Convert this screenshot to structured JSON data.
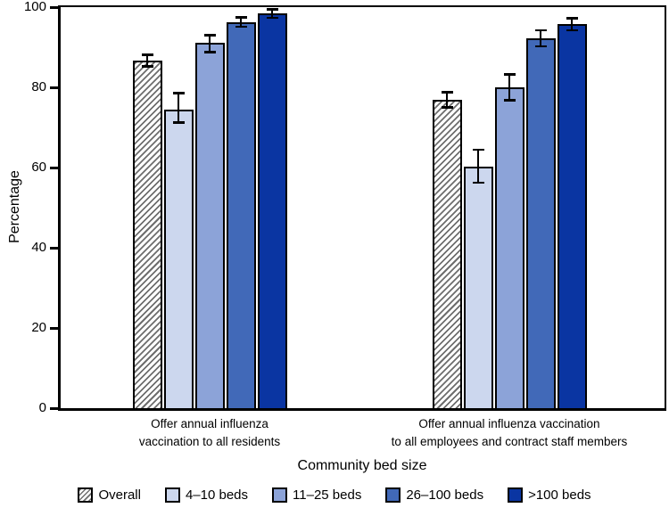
{
  "chart_data": {
    "type": "bar",
    "title": "",
    "ylabel": "Percentage",
    "xlabel": "Community bed size",
    "ylim": [
      0,
      100
    ],
    "yticks": [
      0,
      20,
      40,
      60,
      80,
      100
    ],
    "grid": false,
    "legend_position": "bottom",
    "error_bars": true,
    "bar_border_color": "#000000",
    "hatch_color": "#6e6e6e",
    "categories": [
      {
        "lines": [
          "Offer annual influenza",
          "vaccination to all residents"
        ]
      },
      {
        "lines": [
          "Offer annual influenza vaccination",
          "to all employees and contract staff members"
        ]
      }
    ],
    "series": [
      {
        "name": "Overall",
        "fill": "hatched",
        "color": "#ffffff",
        "values": [
          86.6,
          77.0
        ],
        "ci_low": [
          85.2,
          75.0
        ],
        "ci_high": [
          88.1,
          78.8
        ]
      },
      {
        "name": "4–10 beds",
        "fill": "solid",
        "color": "#ccd7ee",
        "values": [
          74.5,
          60.2
        ],
        "ci_low": [
          71.2,
          56.2
        ],
        "ci_high": [
          78.6,
          64.4
        ]
      },
      {
        "name": "11–25 beds",
        "fill": "solid",
        "color": "#8ca3d8",
        "values": [
          91.1,
          80.0
        ],
        "ci_low": [
          88.8,
          76.8
        ],
        "ci_high": [
          93.0,
          83.2
        ]
      },
      {
        "name": "26–100 beds",
        "fill": "solid",
        "color": "#4169b8",
        "values": [
          96.3,
          92.3
        ],
        "ci_low": [
          95.1,
          90.2
        ],
        "ci_high": [
          97.4,
          94.2
        ]
      },
      {
        "name": ">100 beds",
        "fill": "solid",
        "color": "#0a35a2",
        "values": [
          98.5,
          95.7
        ],
        "ci_low": [
          97.3,
          94.2
        ],
        "ci_high": [
          99.4,
          97.2
        ]
      }
    ]
  }
}
